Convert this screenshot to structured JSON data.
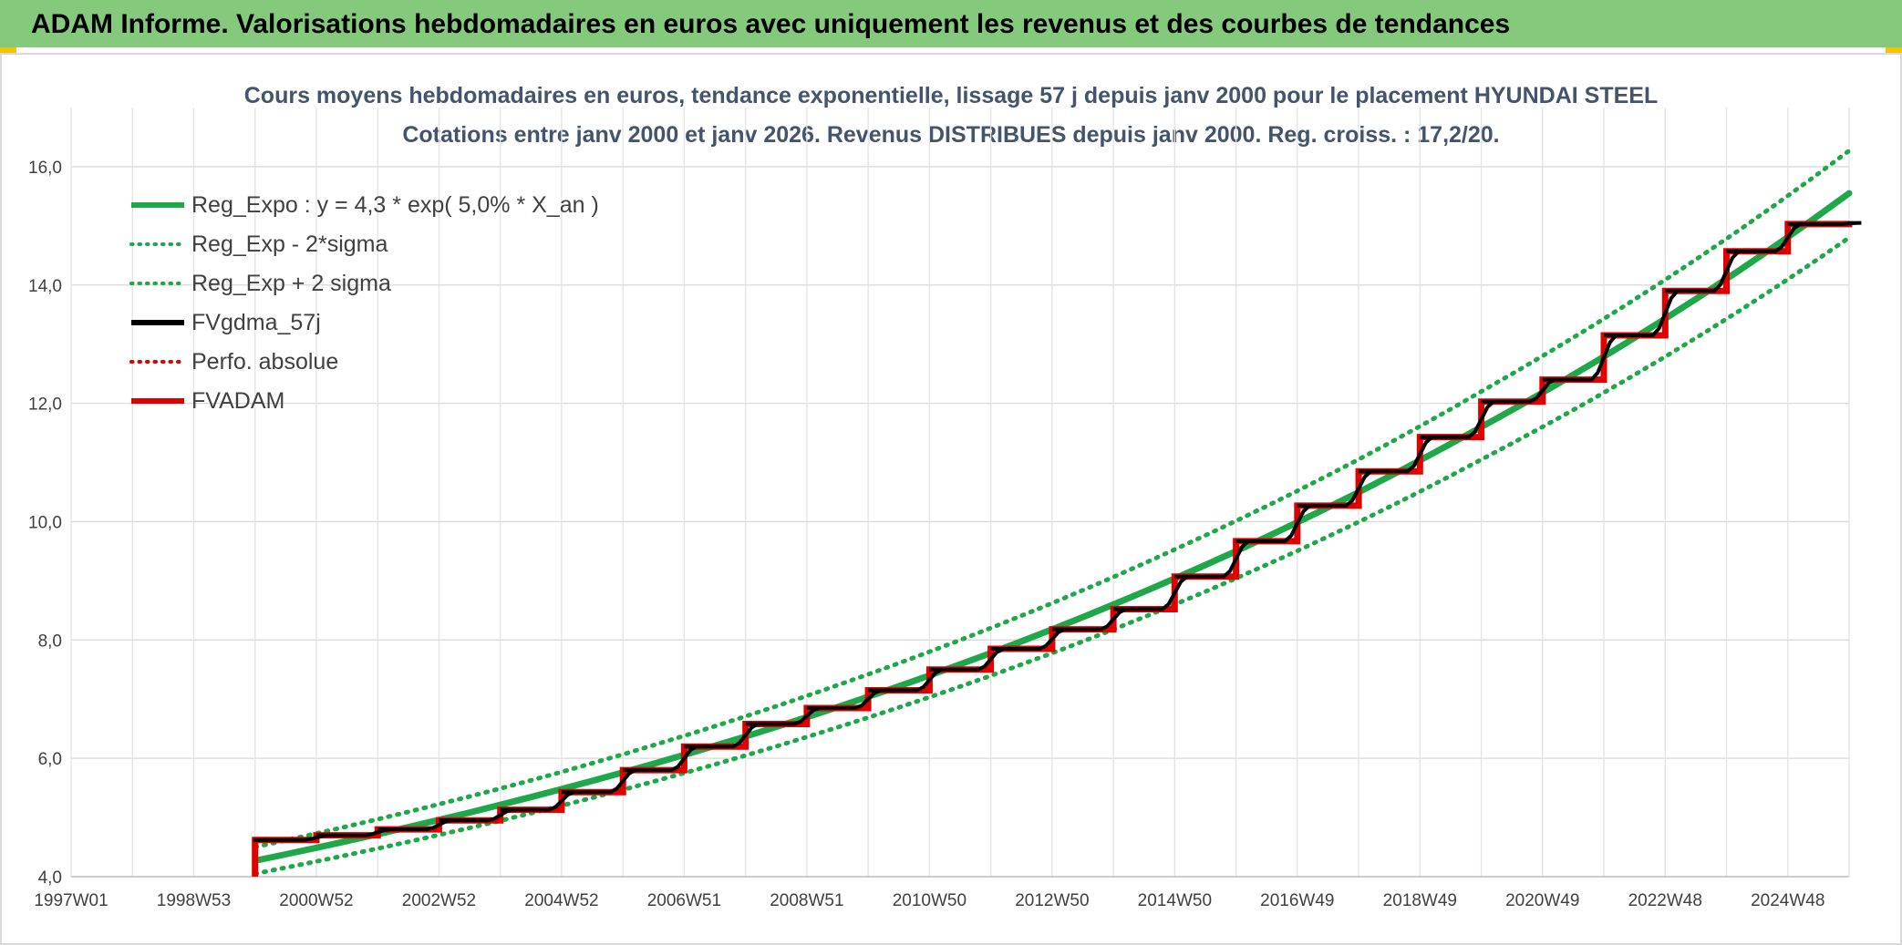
{
  "header": {
    "title": "ADAM Informe. Valorisations hebdomadaires en euros avec uniquement les revenus et des courbes de tendances"
  },
  "chart_data": {
    "type": "line",
    "title": "Cours moyens hebdomadaires en euros, tendance exponentielle, lissage 57 j depuis janv 2000 pour le placement HYUNDAI STEEL",
    "subtitle": "Cotations entre janv 2000 et janv 2026. Revenus DISTRIBUES depuis janv 2000. Reg. croiss. : 17,2/20.",
    "xlabel": "",
    "ylabel": "",
    "x_range": [
      1997.0,
      2026.0
    ],
    "ylim": [
      4.0,
      17.0
    ],
    "y_ticks": [
      4.0,
      6.0,
      8.0,
      10.0,
      12.0,
      14.0,
      16.0
    ],
    "y_tick_labels": [
      "4,0",
      "6,0",
      "8,0",
      "10,0",
      "12,0",
      "14,0",
      "16,0"
    ],
    "x_ticks": [
      1997.0,
      1999.0,
      2001.0,
      2003.0,
      2005.0,
      2007.0,
      2009.0,
      2011.0,
      2013.0,
      2015.0,
      2017.0,
      2019.0,
      2021.0,
      2023.0,
      2025.0
    ],
    "x_tick_labels": [
      "1997W01",
      "1998W53",
      "2000W52",
      "2002W52",
      "2004W52",
      "2006W51",
      "2008W51",
      "2010W50",
      "2012W50",
      "2014W50",
      "2016W49",
      "2018W49",
      "2020W49",
      "2022W48",
      "2024W48"
    ],
    "grid": true,
    "legend_position": "top-left",
    "series": [
      {
        "name": "Reg_Expo : y = 4,3 * exp( 5,0% *  X_an )",
        "color": "#1ea84a",
        "style": "solid",
        "x": [
          2000.0,
          2005.0,
          2010.0,
          2015.0,
          2020.0,
          2026.0
        ],
        "values": [
          4.27,
          5.48,
          7.04,
          9.04,
          11.6,
          15.55
        ]
      },
      {
        "name": "Reg_Exp - 2*sigma",
        "color": "#1ea84a",
        "style": "dotted",
        "x": [
          2000.0,
          2005.0,
          2010.0,
          2015.0,
          2020.0,
          2026.0
        ],
        "values": [
          4.05,
          5.2,
          6.69,
          8.6,
          11.05,
          14.8
        ]
      },
      {
        "name": "Reg_Exp + 2 sigma",
        "color": "#1ea84a",
        "style": "dotted",
        "x": [
          2000.0,
          2005.0,
          2010.0,
          2015.0,
          2020.0,
          2026.0
        ],
        "values": [
          4.5,
          5.77,
          7.42,
          9.53,
          12.2,
          16.27
        ]
      },
      {
        "name": "FVgdma_57j",
        "color": "#000000",
        "style": "solid",
        "x": [
          2000.0,
          2001.0,
          2002.0,
          2003.0,
          2004.0,
          2005.0,
          2006.0,
          2007.0,
          2008.0,
          2009.0,
          2010.0,
          2011.0,
          2012.0,
          2013.0,
          2014.0,
          2015.0,
          2016.0,
          2017.0,
          2018.0,
          2019.0,
          2020.0,
          2021.0,
          2022.0,
          2023.0,
          2024.0,
          2025.0,
          2026.0
        ],
        "values": [
          4.62,
          4.7,
          4.8,
          4.95,
          5.13,
          5.43,
          5.8,
          6.2,
          6.58,
          6.85,
          7.15,
          7.5,
          7.85,
          8.18,
          8.52,
          9.07,
          9.67,
          10.27,
          10.85,
          11.43,
          12.03,
          12.4,
          13.15,
          13.9,
          14.57,
          15.03,
          15.05
        ]
      },
      {
        "name": "Perfo. absolue",
        "color": "#e00000",
        "style": "dotted",
        "x": [],
        "values": []
      },
      {
        "name": "FVADAM",
        "color": "#e00000",
        "style": "step",
        "x": [
          2000.0,
          2001.0,
          2002.0,
          2003.0,
          2004.0,
          2005.0,
          2006.0,
          2007.0,
          2008.0,
          2009.0,
          2010.0,
          2011.0,
          2012.0,
          2013.0,
          2014.0,
          2015.0,
          2016.0,
          2017.0,
          2018.0,
          2019.0,
          2020.0,
          2021.0,
          2022.0,
          2023.0,
          2024.0,
          2025.0,
          2026.0
        ],
        "values": [
          4.62,
          4.7,
          4.8,
          4.95,
          5.13,
          5.43,
          5.8,
          6.2,
          6.58,
          6.85,
          7.15,
          7.5,
          7.85,
          8.18,
          8.52,
          9.07,
          9.67,
          10.27,
          10.85,
          11.43,
          12.03,
          12.4,
          13.15,
          13.9,
          14.57,
          15.03,
          15.05
        ]
      }
    ]
  }
}
